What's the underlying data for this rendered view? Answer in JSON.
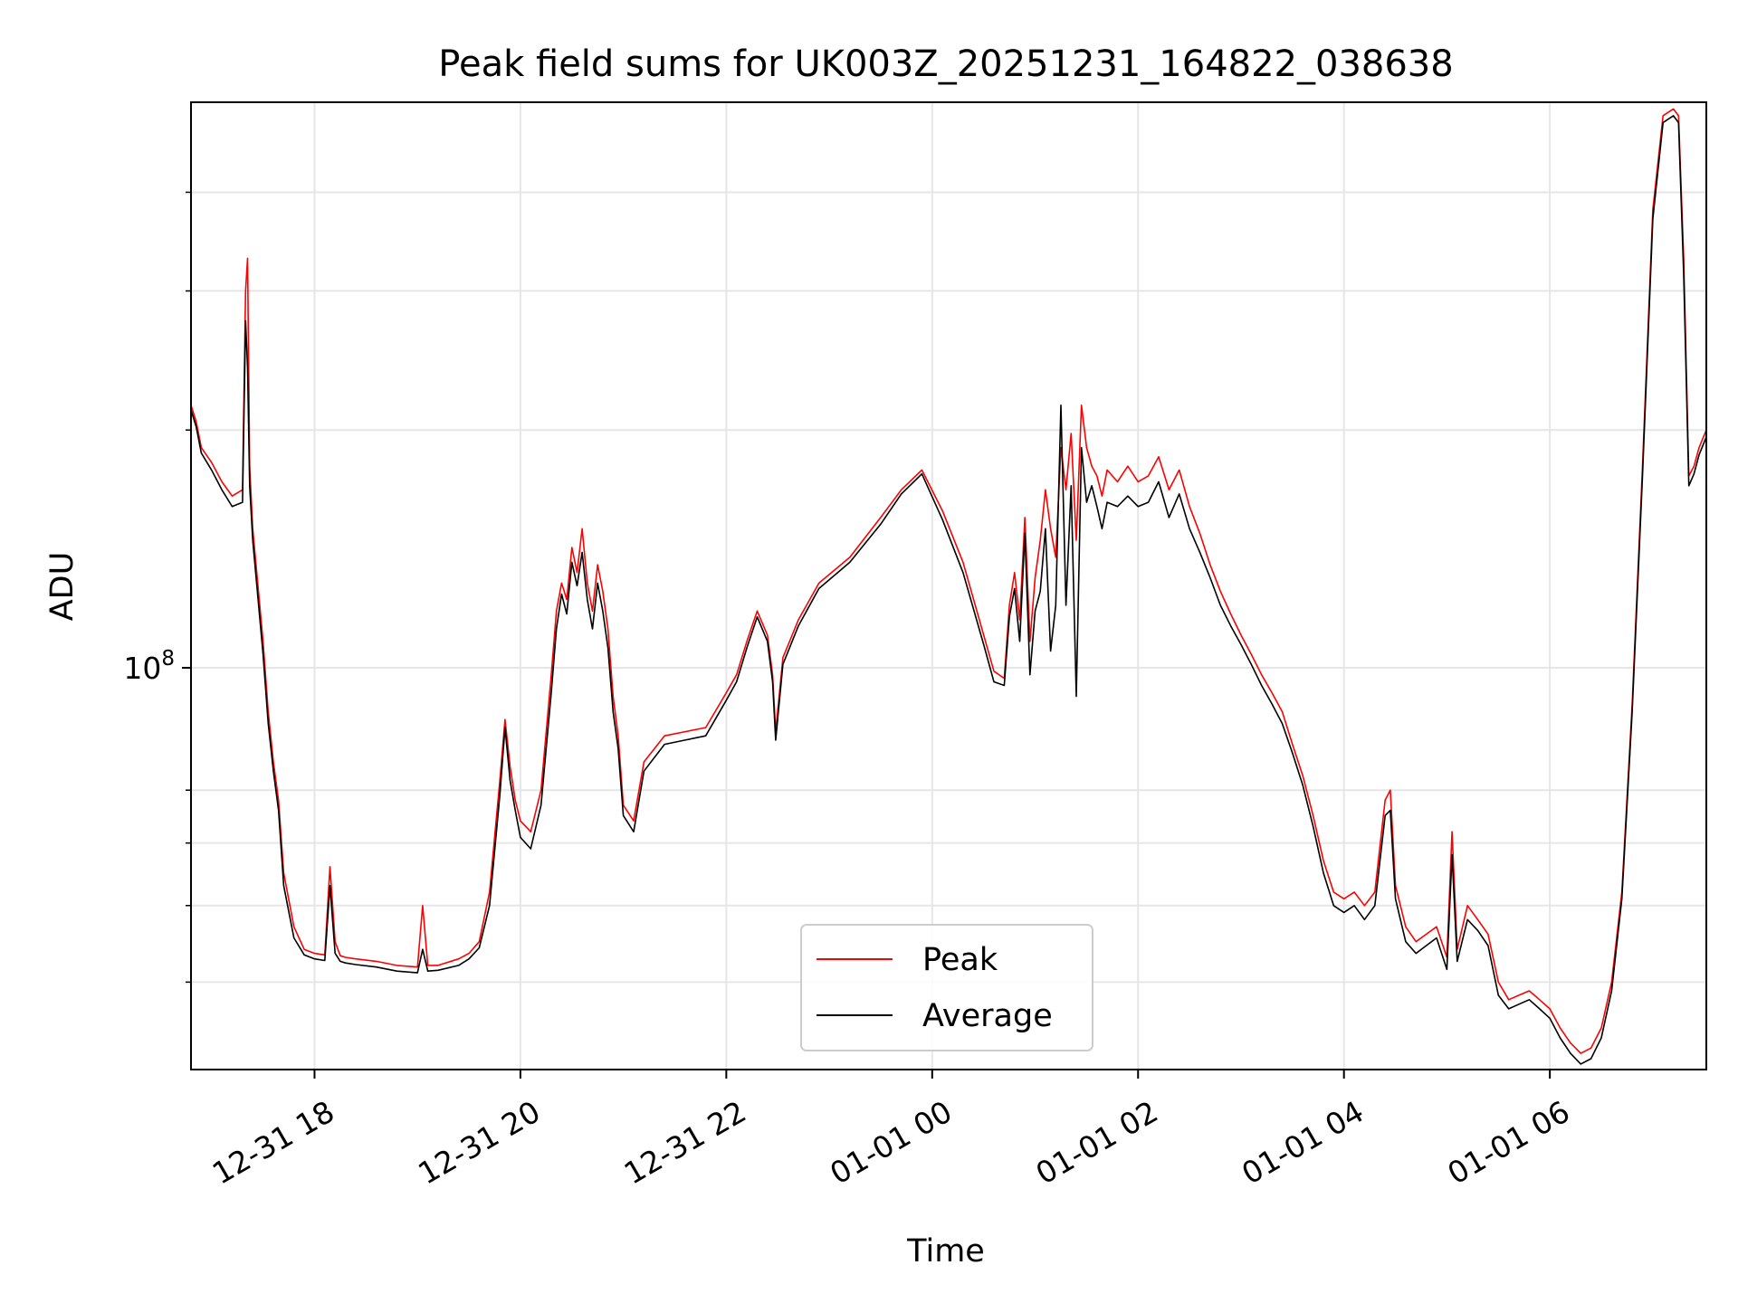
{
  "chart_data": {
    "type": "line",
    "title": "Peak field sums for UK003Z_20251231_164822_038638",
    "xlabel": "Time",
    "ylabel": "ADU",
    "yscale": "log",
    "xlim": [
      16.8,
      31.52
    ],
    "ylim": [
      31000000,
      520000000
    ],
    "x_unit": "hours since 2025-12-31 00:00",
    "grid": true,
    "legend_position": "lower-center",
    "x_ticks": [
      {
        "value": 18,
        "label": "12-31 18"
      },
      {
        "value": 20,
        "label": "12-31 20"
      },
      {
        "value": 22,
        "label": "12-31 22"
      },
      {
        "value": 24,
        "label": "01-01 00"
      },
      {
        "value": 26,
        "label": "01-01 02"
      },
      {
        "value": 28,
        "label": "01-01 04"
      },
      {
        "value": 30,
        "label": "01-01 06"
      }
    ],
    "y_major_ticks": [
      {
        "value": 100000000,
        "label_base": "10",
        "label_exp": "8"
      }
    ],
    "y_minor_ticks": [
      40000000,
      50000000,
      60000000,
      70000000,
      200000000,
      300000000,
      400000000
    ],
    "series": [
      {
        "name": "Peak",
        "color": "#ff0000",
        "x": [
          16.8,
          16.85,
          16.9,
          17.0,
          17.1,
          17.2,
          17.3,
          17.33,
          17.35,
          17.37,
          17.4,
          17.5,
          17.55,
          17.6,
          17.65,
          17.7,
          17.8,
          17.9,
          18.0,
          18.1,
          18.15,
          18.2,
          18.25,
          18.3,
          18.4,
          18.6,
          18.8,
          19.0,
          19.05,
          19.1,
          19.2,
          19.4,
          19.5,
          19.6,
          19.7,
          19.8,
          19.85,
          19.9,
          19.95,
          20.0,
          20.1,
          20.2,
          20.3,
          20.35,
          20.4,
          20.45,
          20.5,
          20.55,
          20.6,
          20.65,
          20.7,
          20.75,
          20.8,
          20.85,
          20.9,
          20.95,
          21.0,
          21.1,
          21.2,
          21.4,
          21.6,
          21.8,
          22.0,
          22.1,
          22.2,
          22.3,
          22.4,
          22.45,
          22.48,
          22.55,
          22.7,
          22.9,
          23.2,
          23.5,
          23.7,
          23.9,
          24.1,
          24.3,
          24.5,
          24.6,
          24.7,
          24.75,
          24.8,
          24.85,
          24.9,
          24.95,
          25.0,
          25.05,
          25.1,
          25.15,
          25.2,
          25.25,
          25.3,
          25.35,
          25.4,
          25.45,
          25.5,
          25.55,
          25.6,
          25.65,
          25.7,
          25.8,
          25.9,
          26.0,
          26.1,
          26.2,
          26.3,
          26.4,
          26.5,
          26.6,
          26.7,
          26.8,
          26.9,
          27.0,
          27.1,
          27.2,
          27.3,
          27.4,
          27.5,
          27.6,
          27.7,
          27.8,
          27.9,
          28.0,
          28.1,
          28.2,
          28.3,
          28.4,
          28.45,
          28.5,
          28.6,
          28.7,
          28.8,
          28.9,
          29.0,
          29.05,
          29.1,
          29.2,
          29.3,
          29.4,
          29.5,
          29.6,
          29.7,
          29.8,
          29.9,
          30.0,
          30.1,
          30.2,
          30.3,
          30.4,
          30.5,
          30.6,
          30.7,
          30.8,
          30.9,
          31.0,
          31.1,
          31.15,
          31.2,
          31.25,
          31.3,
          31.35,
          31.4,
          31.45,
          31.52
        ],
        "y": [
          215000000,
          205000000,
          190000000,
          182000000,
          172000000,
          165000000,
          168000000,
          300000000,
          330000000,
          180000000,
          150000000,
          108000000,
          88000000,
          76000000,
          68000000,
          55000000,
          47000000,
          44000000,
          43500000,
          43300000,
          56000000,
          45000000,
          43200000,
          43000000,
          42800000,
          42500000,
          42000000,
          41800000,
          50000000,
          42000000,
          42000000,
          42800000,
          43500000,
          45000000,
          52000000,
          72000000,
          86000000,
          75000000,
          68000000,
          64000000,
          62000000,
          70000000,
          98000000,
          118000000,
          128000000,
          122000000,
          142000000,
          132000000,
          150000000,
          128000000,
          118000000,
          135000000,
          125000000,
          112000000,
          92000000,
          82000000,
          67000000,
          64000000,
          76000000,
          82000000,
          83000000,
          84000000,
          93000000,
          98000000,
          108000000,
          118000000,
          110000000,
          98000000,
          83000000,
          103000000,
          115000000,
          128000000,
          138000000,
          155000000,
          168000000,
          178000000,
          158000000,
          136000000,
          110000000,
          99000000,
          97000000,
          120000000,
          132000000,
          115000000,
          155000000,
          108000000,
          130000000,
          145000000,
          168000000,
          150000000,
          138000000,
          190000000,
          168000000,
          198000000,
          145000000,
          215000000,
          190000000,
          180000000,
          175000000,
          165000000,
          178000000,
          172000000,
          180000000,
          172000000,
          175000000,
          185000000,
          168000000,
          178000000,
          160000000,
          148000000,
          135000000,
          125000000,
          117000000,
          110000000,
          104000000,
          98000000,
          93000000,
          88000000,
          80000000,
          73000000,
          65000000,
          57000000,
          52000000,
          51000000,
          52000000,
          50000000,
          52000000,
          68000000,
          70000000,
          53000000,
          47000000,
          45000000,
          46000000,
          47000000,
          43000000,
          62000000,
          44000000,
          50000000,
          48000000,
          46000000,
          40000000,
          38000000,
          38500000,
          39000000,
          38000000,
          37000000,
          35000000,
          33500000,
          32500000,
          33000000,
          35000000,
          40000000,
          52000000,
          90000000,
          180000000,
          380000000,
          500000000,
          505000000,
          510000000,
          500000000,
          330000000,
          175000000,
          180000000,
          190000000,
          200000000
        ]
      },
      {
        "name": "Average",
        "color": "#000000",
        "x": [
          16.8,
          16.85,
          16.9,
          17.0,
          17.1,
          17.2,
          17.3,
          17.33,
          17.35,
          17.37,
          17.4,
          17.5,
          17.55,
          17.6,
          17.65,
          17.7,
          17.8,
          17.9,
          18.0,
          18.1,
          18.15,
          18.2,
          18.25,
          18.3,
          18.4,
          18.6,
          18.8,
          19.0,
          19.05,
          19.1,
          19.2,
          19.4,
          19.5,
          19.6,
          19.7,
          19.8,
          19.85,
          19.9,
          19.95,
          20.0,
          20.1,
          20.2,
          20.3,
          20.35,
          20.4,
          20.45,
          20.5,
          20.55,
          20.6,
          20.65,
          20.7,
          20.75,
          20.8,
          20.85,
          20.9,
          20.95,
          21.0,
          21.1,
          21.2,
          21.4,
          21.6,
          21.8,
          22.0,
          22.1,
          22.2,
          22.3,
          22.4,
          22.45,
          22.48,
          22.55,
          22.7,
          22.9,
          23.2,
          23.5,
          23.7,
          23.9,
          24.1,
          24.3,
          24.5,
          24.6,
          24.7,
          24.75,
          24.8,
          24.85,
          24.9,
          24.95,
          25.0,
          25.05,
          25.1,
          25.15,
          25.2,
          25.25,
          25.3,
          25.35,
          25.4,
          25.45,
          25.5,
          25.55,
          25.6,
          25.65,
          25.7,
          25.8,
          25.9,
          26.0,
          26.1,
          26.2,
          26.3,
          26.4,
          26.5,
          26.6,
          26.7,
          26.8,
          26.9,
          27.0,
          27.1,
          27.2,
          27.3,
          27.4,
          27.5,
          27.6,
          27.7,
          27.8,
          27.9,
          28.0,
          28.1,
          28.2,
          28.3,
          28.4,
          28.45,
          28.5,
          28.6,
          28.7,
          28.8,
          28.9,
          29.0,
          29.05,
          29.1,
          29.2,
          29.3,
          29.4,
          29.5,
          29.6,
          29.7,
          29.8,
          29.9,
          30.0,
          30.1,
          30.2,
          30.3,
          30.4,
          30.5,
          30.6,
          30.7,
          30.8,
          30.9,
          31.0,
          31.1,
          31.15,
          31.2,
          31.25,
          31.3,
          31.35,
          31.4,
          31.45,
          31.52
        ],
        "y": [
          212000000,
          202000000,
          187000000,
          178000000,
          168000000,
          160000000,
          162000000,
          275000000,
          240000000,
          170000000,
          145000000,
          104000000,
          85000000,
          74000000,
          66000000,
          53000000,
          45500000,
          43300000,
          42800000,
          42600000,
          53000000,
          43500000,
          42500000,
          42300000,
          42100000,
          41800000,
          41300000,
          41100000,
          44000000,
          41300000,
          41400000,
          42000000,
          42800000,
          44200000,
          50000000,
          69000000,
          84000000,
          72000000,
          66000000,
          61000000,
          59000000,
          67000000,
          93000000,
          112000000,
          124000000,
          117000000,
          136000000,
          127000000,
          140000000,
          122000000,
          112000000,
          128000000,
          118000000,
          106000000,
          88000000,
          79000000,
          65000000,
          62000000,
          74000000,
          80000000,
          81000000,
          82000000,
          91000000,
          96000000,
          106000000,
          116000000,
          108000000,
          96000000,
          81000000,
          101000000,
          113000000,
          126000000,
          136000000,
          152000000,
          166000000,
          176000000,
          154000000,
          132000000,
          107000000,
          96000000,
          95000000,
          116000000,
          126000000,
          108000000,
          148000000,
          98000000,
          118000000,
          125000000,
          150000000,
          105000000,
          120000000,
          215000000,
          120000000,
          170000000,
          92000000,
          190000000,
          162000000,
          170000000,
          160000000,
          150000000,
          162000000,
          160000000,
          165000000,
          160000000,
          162000000,
          172000000,
          155000000,
          166000000,
          150000000,
          140000000,
          130000000,
          120000000,
          113000000,
          107000000,
          101000000,
          95000000,
          90000000,
          85000000,
          78000000,
          71000000,
          63000000,
          55000000,
          50000000,
          49000000,
          50000000,
          48000000,
          50000000,
          65000000,
          66000000,
          51000000,
          45000000,
          43500000,
          44500000,
          45500000,
          41500000,
          58000000,
          42500000,
          48000000,
          46500000,
          44500000,
          38500000,
          37000000,
          37500000,
          38000000,
          37000000,
          36000000,
          34000000,
          32500000,
          31500000,
          32000000,
          34000000,
          39000000,
          51000000,
          88000000,
          175000000,
          370000000,
          490000000,
          495000000,
          500000000,
          490000000,
          315000000,
          170000000,
          176000000,
          186000000,
          196000000
        ]
      }
    ]
  }
}
